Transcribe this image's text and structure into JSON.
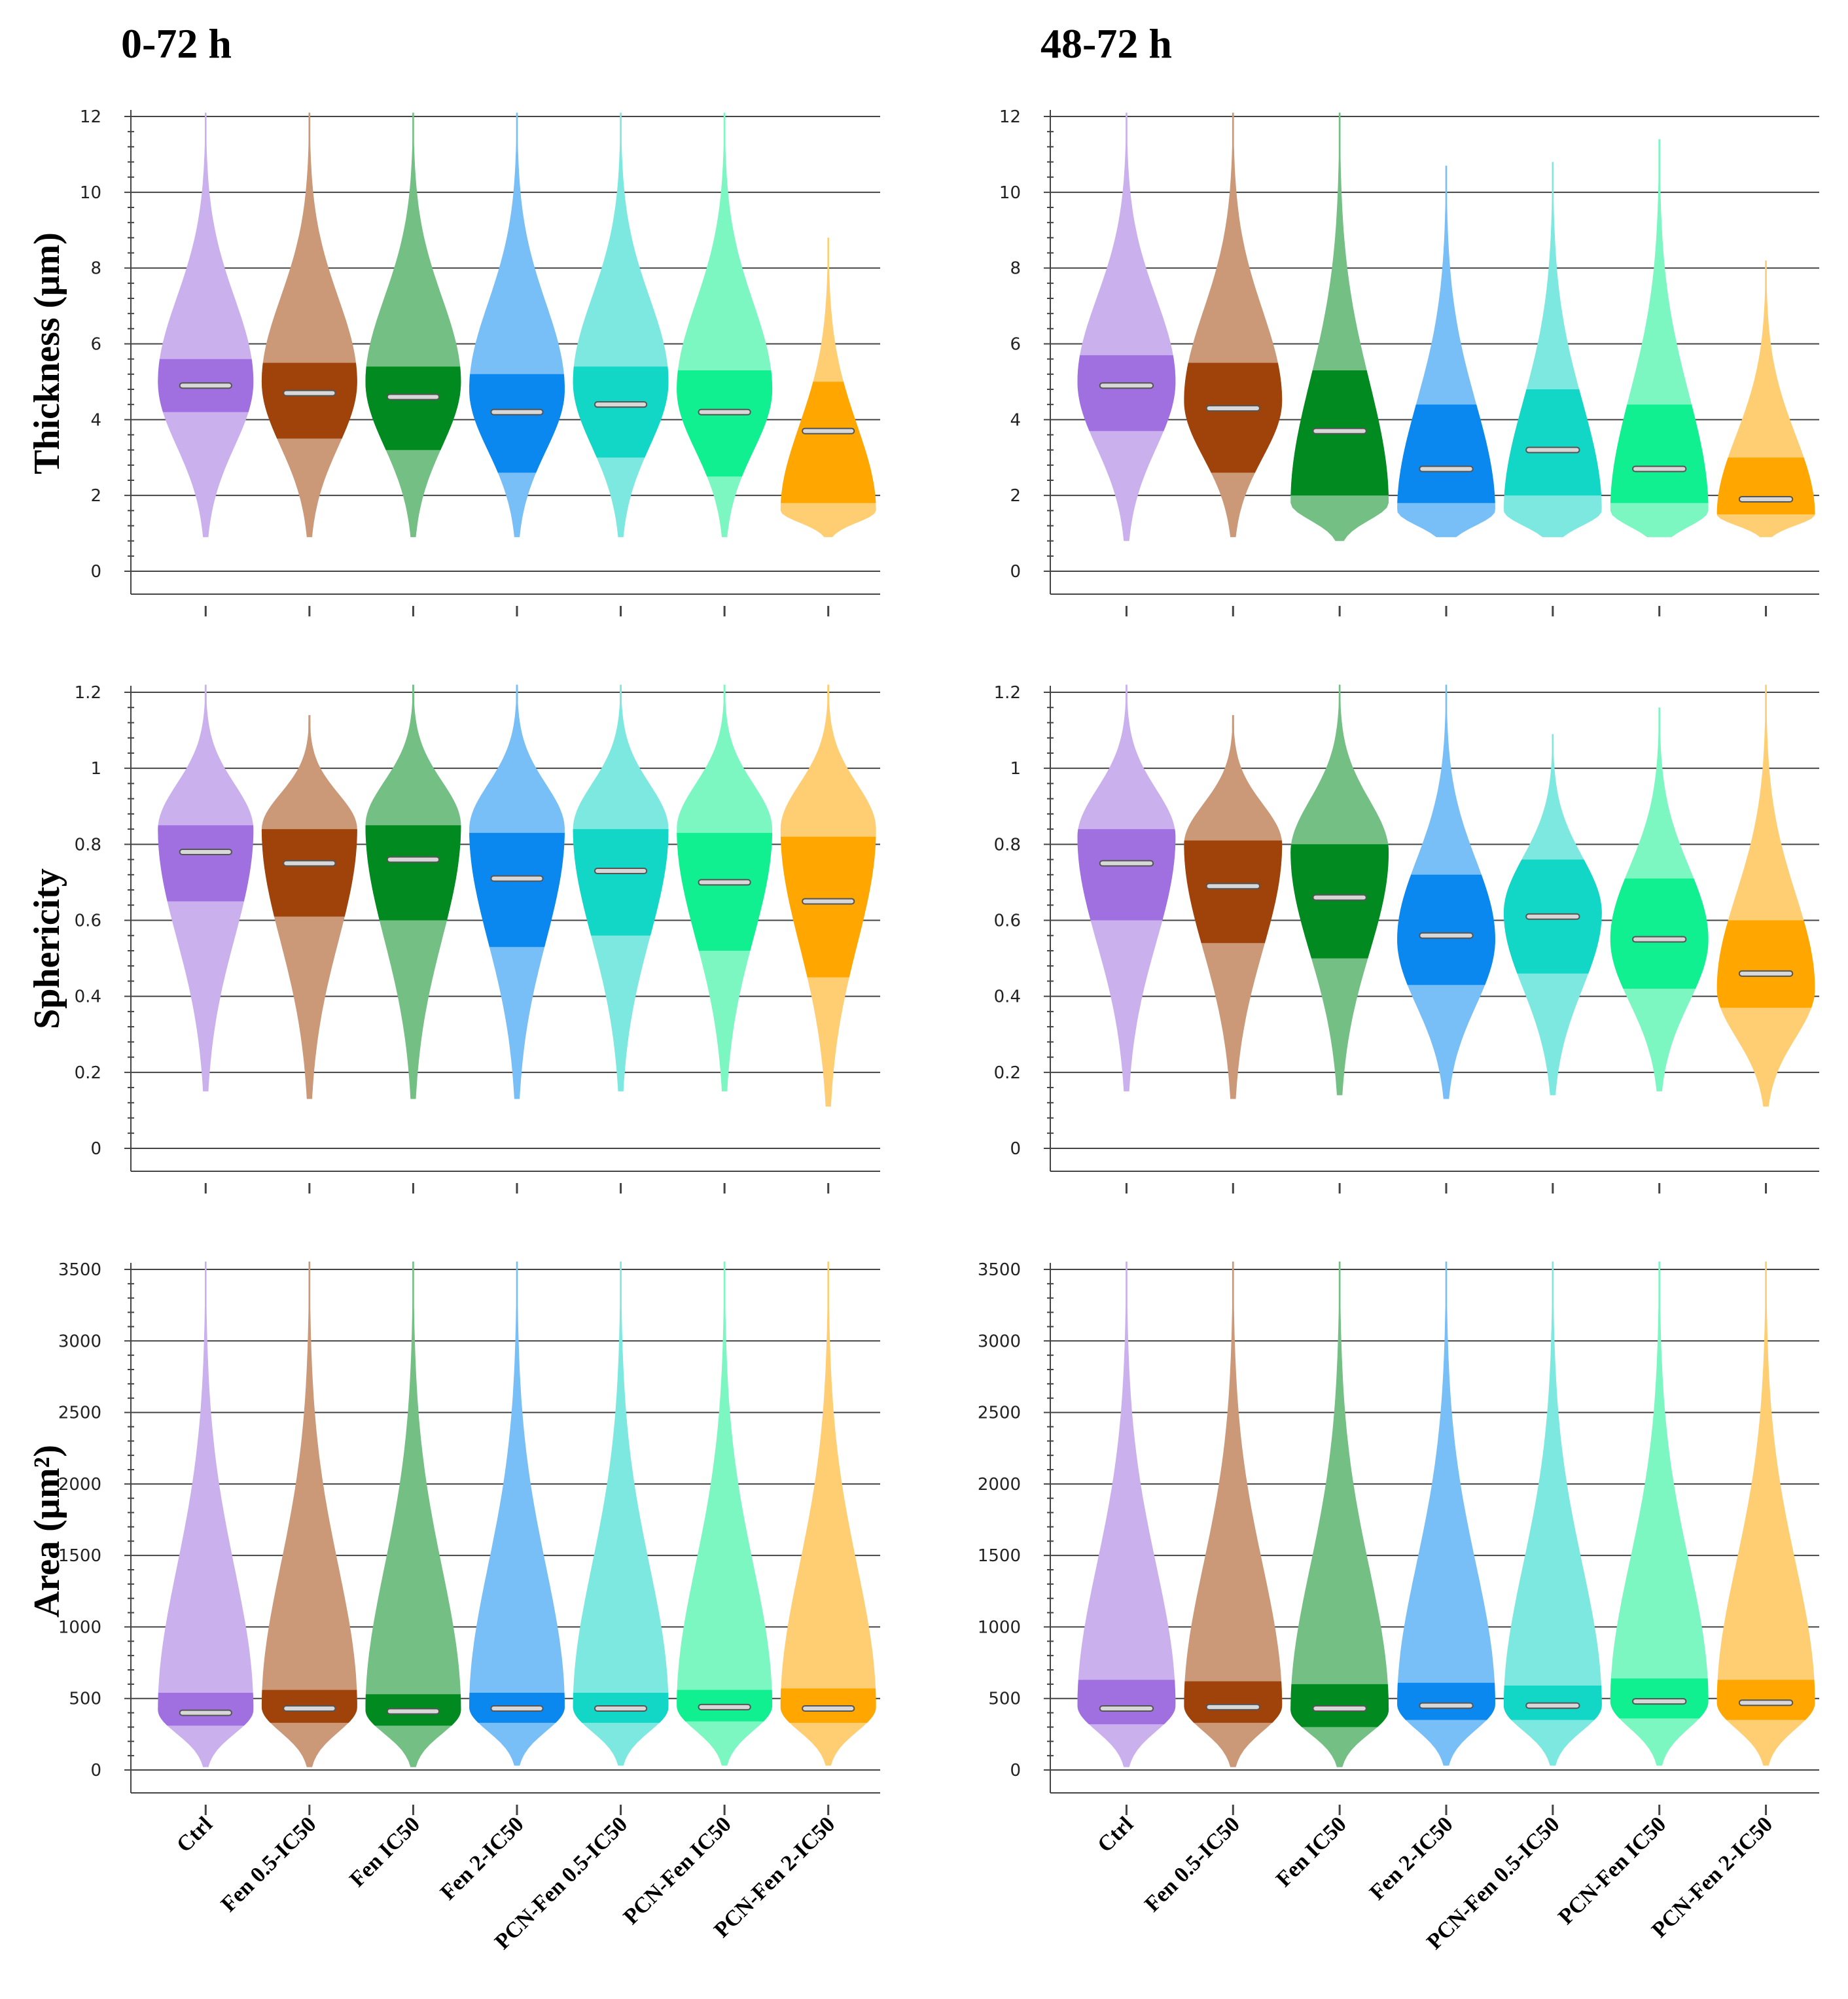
{
  "panel_titles": {
    "left": "0-72 h",
    "right": "48-72 h"
  },
  "row_labels": {
    "thickness": "Thickness (µm)",
    "sphericity": "Sphericity",
    "area": "Area (µm²)"
  },
  "colors": [
    "#a070e0",
    "#a0430a",
    "#008a1f",
    "#0a88f0",
    "#12d6c6",
    "#10f090",
    "#ffa600"
  ],
  "categories": [
    "Ctrl",
    "Fen 0.5-IC50",
    "Fen IC50",
    "Fen 2-IC50",
    "PCN-Fen 0.5-IC50",
    "PCN-Fen IC50",
    "PCN-Fen 2-IC50"
  ],
  "chart_data": [
    {
      "id": "thickness-0-72",
      "type": "violin",
      "title": "0-72 h",
      "ylabel": "Thickness (µm)",
      "ylim": [
        0,
        12
      ],
      "yticks": [
        0,
        2,
        4,
        6,
        8,
        10,
        12
      ],
      "ytick_labels": [
        "0",
        "2",
        "4",
        "6",
        "8",
        "10",
        "12"
      ],
      "categories": [
        "Ctrl",
        "Fen 0.5-IC50",
        "Fen IC50",
        "Fen 2-IC50",
        "PCN-Fen 0.5-IC50",
        "PCN-Fen IC50",
        "PCN-Fen 2-IC50"
      ],
      "series": [
        {
          "name": "Ctrl",
          "min": 0.9,
          "max": 12.1,
          "mode": 5.0,
          "q1": 4.2,
          "q3": 5.6,
          "median": 4.9
        },
        {
          "name": "Fen 0.5-IC50",
          "min": 0.9,
          "max": 12.1,
          "mode": 5.0,
          "q1": 3.5,
          "q3": 5.5,
          "median": 4.7
        },
        {
          "name": "Fen IC50",
          "min": 0.9,
          "max": 12.1,
          "mode": 5.0,
          "q1": 3.2,
          "q3": 5.4,
          "median": 4.6
        },
        {
          "name": "Fen 2-IC50",
          "min": 0.9,
          "max": 12.1,
          "mode": 4.8,
          "q1": 2.6,
          "q3": 5.2,
          "median": 4.2
        },
        {
          "name": "PCN-Fen 0.5-IC50",
          "min": 0.9,
          "max": 12.1,
          "mode": 5.0,
          "q1": 3.0,
          "q3": 5.4,
          "median": 4.4
        },
        {
          "name": "PCN-Fen IC50",
          "min": 0.9,
          "max": 12.1,
          "mode": 4.8,
          "q1": 2.5,
          "q3": 5.3,
          "median": 4.2
        },
        {
          "name": "PCN-Fen 2-IC50",
          "min": 0.9,
          "max": 8.8,
          "mode": 1.6,
          "q1": 1.8,
          "q3": 5.0,
          "median": 3.7
        }
      ]
    },
    {
      "id": "thickness-48-72",
      "type": "violin",
      "title": "48-72 h",
      "ylabel": "Thickness (µm)",
      "ylim": [
        0,
        12
      ],
      "yticks": [
        0,
        2,
        4,
        6,
        8,
        10,
        12
      ],
      "ytick_labels": [
        "0",
        "2",
        "4",
        "6",
        "8",
        "10",
        "12"
      ],
      "categories": [
        "Ctrl",
        "Fen 0.5-IC50",
        "Fen IC50",
        "Fen 2-IC50",
        "PCN-Fen 0.5-IC50",
        "PCN-Fen IC50",
        "PCN-Fen 2-IC50"
      ],
      "series": [
        {
          "name": "Ctrl",
          "min": 0.8,
          "max": 12.1,
          "mode": 5.0,
          "q1": 3.7,
          "q3": 5.7,
          "median": 4.9
        },
        {
          "name": "Fen 0.5-IC50",
          "min": 0.9,
          "max": 12.1,
          "mode": 4.5,
          "q1": 2.6,
          "q3": 5.5,
          "median": 4.3
        },
        {
          "name": "Fen IC50",
          "min": 0.8,
          "max": 12.1,
          "mode": 1.8,
          "q1": 2.0,
          "q3": 5.3,
          "median": 3.7
        },
        {
          "name": "Fen 2-IC50",
          "min": 0.9,
          "max": 10.7,
          "mode": 1.6,
          "q1": 1.8,
          "q3": 4.4,
          "median": 2.7
        },
        {
          "name": "PCN-Fen 0.5-IC50",
          "min": 0.9,
          "max": 10.8,
          "mode": 1.6,
          "q1": 2.0,
          "q3": 4.8,
          "median": 3.2
        },
        {
          "name": "PCN-Fen IC50",
          "min": 0.9,
          "max": 11.4,
          "mode": 1.6,
          "q1": 1.8,
          "q3": 4.4,
          "median": 2.7
        },
        {
          "name": "PCN-Fen 2-IC50",
          "min": 0.9,
          "max": 8.2,
          "mode": 1.5,
          "q1": 1.5,
          "q3": 3.0,
          "median": 1.9
        }
      ]
    },
    {
      "id": "sphericity-0-72",
      "type": "violin",
      "title": "0-72 h",
      "ylabel": "Sphericity",
      "ylim": [
        0,
        1.2
      ],
      "yticks": [
        0,
        0.2,
        0.4,
        0.6,
        0.8,
        1,
        1.2
      ],
      "ytick_labels": [
        "0",
        "0.2",
        "0.4",
        "0.6",
        "0.8",
        "1",
        "1.2"
      ],
      "categories": [
        "Ctrl",
        "Fen 0.5-IC50",
        "Fen IC50",
        "Fen 2-IC50",
        "PCN-Fen 0.5-IC50",
        "PCN-Fen IC50",
        "PCN-Fen 2-IC50"
      ],
      "series": [
        {
          "name": "Ctrl",
          "min": 0.15,
          "max": 1.22,
          "mode": 0.84,
          "q1": 0.65,
          "q3": 0.85,
          "median": 0.78
        },
        {
          "name": "Fen 0.5-IC50",
          "min": 0.13,
          "max": 1.14,
          "mode": 0.84,
          "q1": 0.61,
          "q3": 0.84,
          "median": 0.75
        },
        {
          "name": "Fen IC50",
          "min": 0.13,
          "max": 1.22,
          "mode": 0.85,
          "q1": 0.6,
          "q3": 0.85,
          "median": 0.76
        },
        {
          "name": "Fen 2-IC50",
          "min": 0.13,
          "max": 1.22,
          "mode": 0.84,
          "q1": 0.53,
          "q3": 0.83,
          "median": 0.71
        },
        {
          "name": "PCN-Fen 0.5-IC50",
          "min": 0.15,
          "max": 1.22,
          "mode": 0.84,
          "q1": 0.56,
          "q3": 0.84,
          "median": 0.73
        },
        {
          "name": "PCN-Fen IC50",
          "min": 0.15,
          "max": 1.22,
          "mode": 0.84,
          "q1": 0.52,
          "q3": 0.83,
          "median": 0.7
        },
        {
          "name": "PCN-Fen 2-IC50",
          "min": 0.11,
          "max": 1.22,
          "mode": 0.84,
          "q1": 0.45,
          "q3": 0.82,
          "median": 0.65
        }
      ]
    },
    {
      "id": "sphericity-48-72",
      "type": "violin",
      "title": "48-72 h",
      "ylabel": "Sphericity",
      "ylim": [
        0,
        1.2
      ],
      "yticks": [
        0,
        0.2,
        0.4,
        0.6,
        0.8,
        1,
        1.2
      ],
      "ytick_labels": [
        "0",
        "0.2",
        "0.4",
        "0.6",
        "0.8",
        "1",
        "1.2"
      ],
      "categories": [
        "Ctrl",
        "Fen 0.5-IC50",
        "Fen IC50",
        "Fen 2-IC50",
        "PCN-Fen 0.5-IC50",
        "PCN-Fen IC50",
        "PCN-Fen 2-IC50"
      ],
      "series": [
        {
          "name": "Ctrl",
          "min": 0.15,
          "max": 1.22,
          "mode": 0.82,
          "q1": 0.6,
          "q3": 0.84,
          "median": 0.75
        },
        {
          "name": "Fen 0.5-IC50",
          "min": 0.13,
          "max": 1.14,
          "mode": 0.8,
          "q1": 0.54,
          "q3": 0.81,
          "median": 0.69
        },
        {
          "name": "Fen IC50",
          "min": 0.14,
          "max": 1.22,
          "mode": 0.78,
          "q1": 0.5,
          "q3": 0.8,
          "median": 0.66
        },
        {
          "name": "Fen 2-IC50",
          "min": 0.13,
          "max": 1.22,
          "mode": 0.55,
          "q1": 0.43,
          "q3": 0.72,
          "median": 0.56
        },
        {
          "name": "PCN-Fen 0.5-IC50",
          "min": 0.14,
          "max": 1.09,
          "mode": 0.62,
          "q1": 0.46,
          "q3": 0.76,
          "median": 0.61
        },
        {
          "name": "PCN-Fen IC50",
          "min": 0.15,
          "max": 1.16,
          "mode": 0.55,
          "q1": 0.42,
          "q3": 0.71,
          "median": 0.55
        },
        {
          "name": "PCN-Fen 2-IC50",
          "min": 0.11,
          "max": 1.22,
          "mode": 0.42,
          "q1": 0.37,
          "q3": 0.6,
          "median": 0.46
        }
      ]
    },
    {
      "id": "area-0-72",
      "type": "violin",
      "title": "0-72 h",
      "ylabel": "Area (µm²)",
      "ylim": [
        0,
        3500
      ],
      "yticks": [
        0,
        500,
        1000,
        1500,
        2000,
        2500,
        3000,
        3500
      ],
      "ytick_labels": [
        "0",
        "500",
        "1000",
        "1500",
        "2000",
        "2500",
        "3000",
        "3500"
      ],
      "categories": [
        "Ctrl",
        "Fen 0.5-IC50",
        "Fen IC50",
        "Fen 2-IC50",
        "PCN-Fen 0.5-IC50",
        "PCN-Fen IC50",
        "PCN-Fen 2-IC50"
      ],
      "series": [
        {
          "name": "Ctrl",
          "min": 20,
          "max": 3600,
          "mode": 420,
          "q1": 310,
          "q3": 540,
          "median": 400
        },
        {
          "name": "Fen 0.5-IC50",
          "min": 20,
          "max": 3600,
          "mode": 440,
          "q1": 330,
          "q3": 560,
          "median": 430
        },
        {
          "name": "Fen IC50",
          "min": 20,
          "max": 3600,
          "mode": 420,
          "q1": 310,
          "q3": 530,
          "median": 410
        },
        {
          "name": "Fen 2-IC50",
          "min": 30,
          "max": 3600,
          "mode": 440,
          "q1": 330,
          "q3": 540,
          "median": 430
        },
        {
          "name": "PCN-Fen 0.5-IC50",
          "min": 30,
          "max": 3600,
          "mode": 440,
          "q1": 330,
          "q3": 540,
          "median": 430
        },
        {
          "name": "PCN-Fen IC50",
          "min": 30,
          "max": 3600,
          "mode": 450,
          "q1": 340,
          "q3": 560,
          "median": 440
        },
        {
          "name": "PCN-Fen 2-IC50",
          "min": 30,
          "max": 3600,
          "mode": 440,
          "q1": 330,
          "q3": 570,
          "median": 430
        }
      ]
    },
    {
      "id": "area-48-72",
      "type": "violin",
      "title": "48-72 h",
      "ylabel": "Area (µm²)",
      "ylim": [
        0,
        3500
      ],
      "yticks": [
        0,
        500,
        1000,
        1500,
        2000,
        2500,
        3000,
        3500
      ],
      "ytick_labels": [
        "0",
        "500",
        "1000",
        "1500",
        "2000",
        "2500",
        "3000",
        "3500"
      ],
      "categories": [
        "Ctrl",
        "Fen 0.5-IC50",
        "Fen IC50",
        "Fen 2-IC50",
        "PCN-Fen 0.5-IC50",
        "PCN-Fen IC50",
        "PCN-Fen 2-IC50"
      ],
      "series": [
        {
          "name": "Ctrl",
          "min": 20,
          "max": 3600,
          "mode": 450,
          "q1": 320,
          "q3": 630,
          "median": 430
        },
        {
          "name": "Fen 0.5-IC50",
          "min": 20,
          "max": 3600,
          "mode": 450,
          "q1": 330,
          "q3": 620,
          "median": 440
        },
        {
          "name": "Fen IC50",
          "min": 20,
          "max": 3600,
          "mode": 420,
          "q1": 300,
          "q3": 600,
          "median": 430
        },
        {
          "name": "Fen 2-IC50",
          "min": 30,
          "max": 3600,
          "mode": 460,
          "q1": 350,
          "q3": 610,
          "median": 450
        },
        {
          "name": "PCN-Fen 0.5-IC50",
          "min": 30,
          "max": 3600,
          "mode": 450,
          "q1": 350,
          "q3": 590,
          "median": 450
        },
        {
          "name": "PCN-Fen IC50",
          "min": 30,
          "max": 3600,
          "mode": 480,
          "q1": 360,
          "q3": 640,
          "median": 480
        },
        {
          "name": "PCN-Fen 2-IC50",
          "min": 30,
          "max": 3600,
          "mode": 470,
          "q1": 350,
          "q3": 630,
          "median": 470
        }
      ]
    }
  ]
}
